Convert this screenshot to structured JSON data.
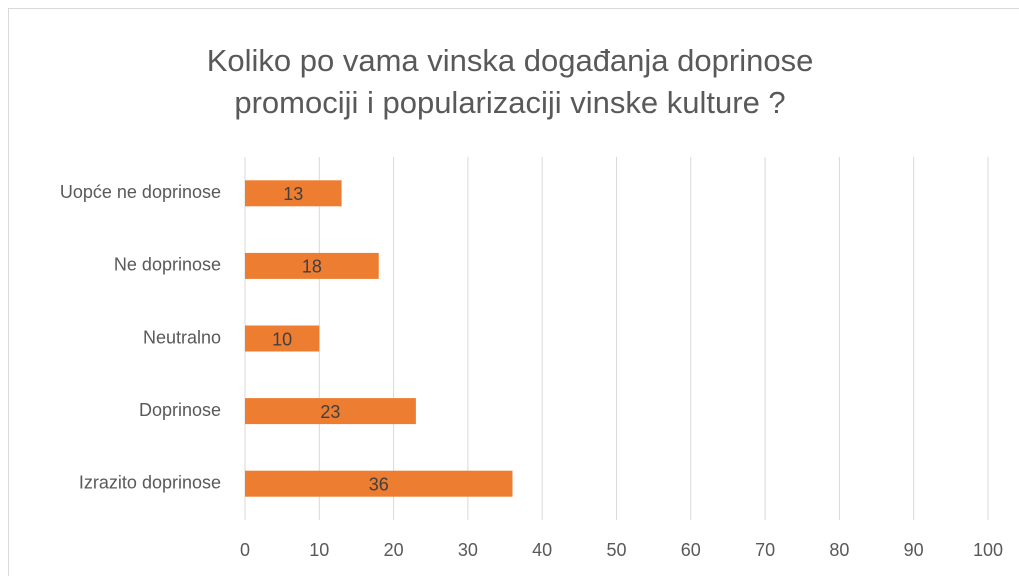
{
  "chart_data": {
    "type": "bar",
    "title": [
      "Koliko po vama vinska događanja doprinose",
      "promociji i popularizaciji vinske kulture ?"
    ],
    "categories": [
      "Uopće ne doprinose",
      "Ne doprinose",
      "Neutralno",
      "Doprinose",
      "Izrazito doprinose"
    ],
    "values": [
      13,
      18,
      10,
      23,
      36
    ],
    "color": "#ed7d31",
    "xlim": [
      0,
      100
    ],
    "xticks": [
      0,
      10,
      20,
      30,
      40,
      50,
      60,
      70,
      80,
      90,
      100
    ],
    "grid": true
  }
}
